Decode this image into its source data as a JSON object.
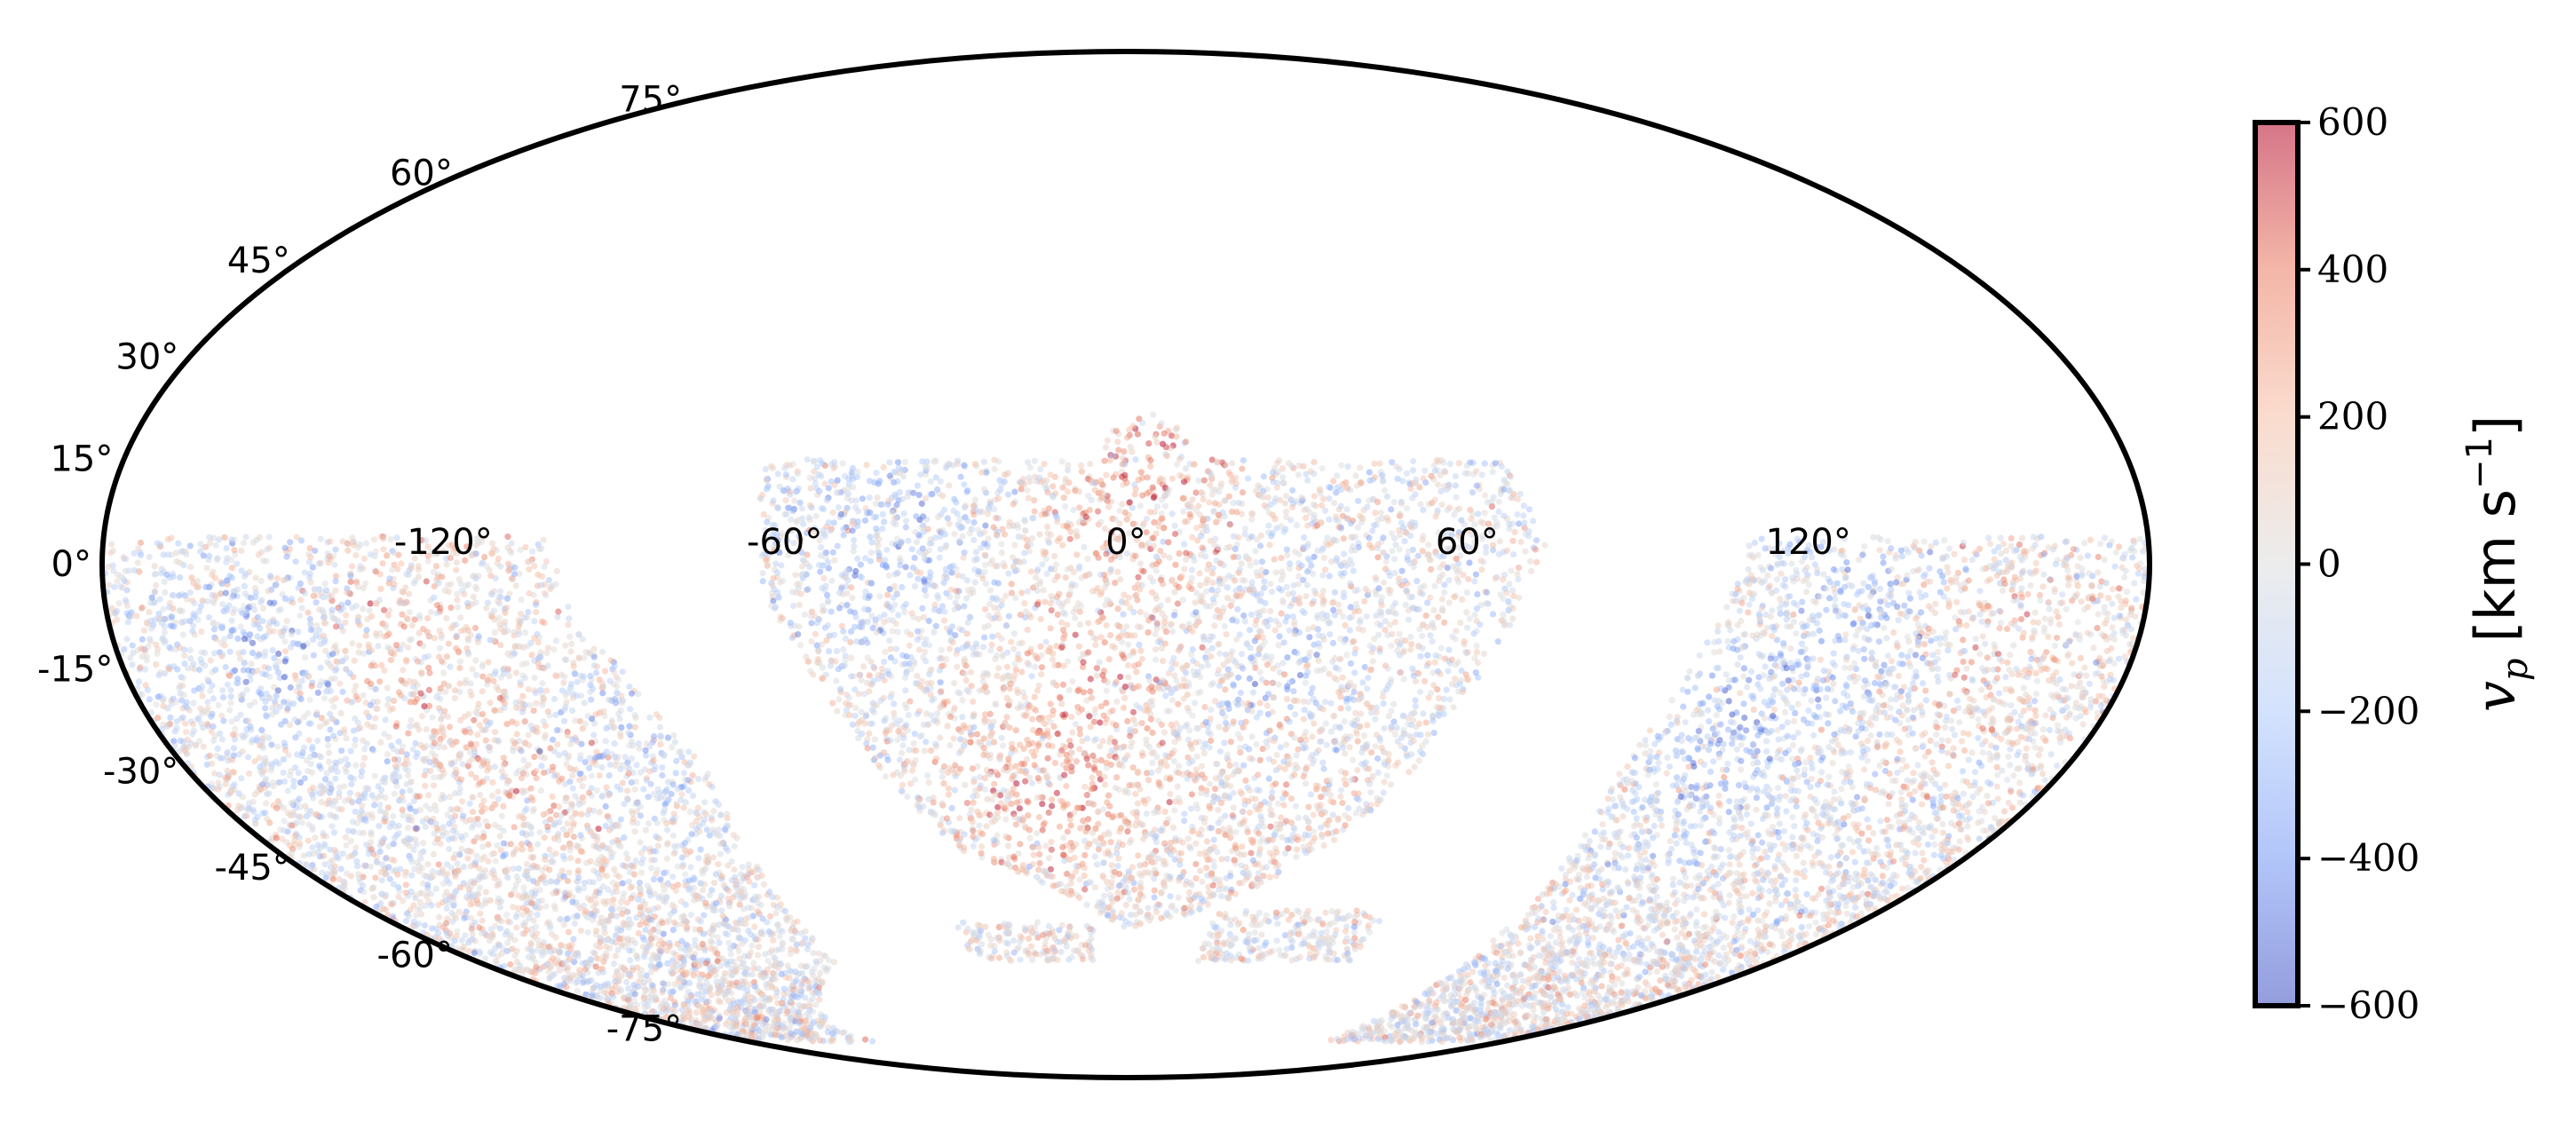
{
  "chart_data": {
    "type": "scatter",
    "projection": "mollweide",
    "xlabel": "",
    "ylabel": "",
    "xlim": [
      -180,
      180
    ],
    "ylim": [
      -90,
      90
    ],
    "grid": false,
    "legend": "none",
    "x_tick_labels": [
      "-120°",
      "-60°",
      "0°",
      "60°",
      "120°"
    ],
    "x_tick_values": [
      -120,
      -60,
      0,
      60,
      120
    ],
    "y_tick_labels": [
      "75°",
      "60°",
      "45°",
      "30°",
      "15°",
      "0°",
      "-15°",
      "-30°",
      "-45°",
      "-60°",
      "-75°"
    ],
    "y_tick_values": [
      75,
      60,
      45,
      30,
      15,
      0,
      -15,
      -30,
      -45,
      -60,
      -75
    ],
    "colormap": "coolwarm",
    "colormap_stops": [
      "#3b4cc0",
      "#7396f5",
      "#b0cbfc",
      "#dcdddd",
      "#f6bfa6",
      "#ea7b60",
      "#b40426"
    ],
    "marker_alpha": 0.5,
    "colorbar": {
      "label_var": "v",
      "label_sub": "p",
      "label_unit": "[km s",
      "label_exp": "−1",
      "label_close": "]",
      "vmin": -600,
      "vmax": 600,
      "ticks": [
        600,
        400,
        200,
        0,
        -200,
        -400,
        -600
      ],
      "tick_labels": [
        "600",
        "400",
        "200",
        "0",
        "−200",
        "−400",
        "−600"
      ]
    },
    "point_regions": [
      {
        "name": "central",
        "note": "lon -65..75, lat up to 15 (20 near lon 0-10), southern edge descending to about -50"
      },
      {
        "name": "west",
        "note": "lon -180..-80, lat -5..-75"
      },
      {
        "name": "east",
        "note": "lon 95..180, lat -5..-75"
      },
      {
        "name": "south-strip",
        "note": "lon -40..-5 and 20..60 near lat -58..-60"
      }
    ],
    "point_count_approx": 14000
  }
}
